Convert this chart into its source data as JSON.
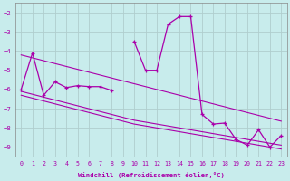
{
  "xlabel": "Windchill (Refroidissement éolien,°C)",
  "background_color": "#c8ecec",
  "grid_color": "#b0cece",
  "line_color": "#aa00aa",
  "x": [
    0,
    1,
    2,
    3,
    4,
    5,
    6,
    7,
    8,
    9,
    10,
    11,
    12,
    13,
    14,
    15,
    16,
    17,
    18,
    19,
    20,
    21,
    22,
    23
  ],
  "y_main": [
    -6.0,
    -4.1,
    -6.3,
    -5.6,
    -5.9,
    -5.8,
    -5.85,
    -5.85,
    -6.05,
    null,
    -3.5,
    -5.0,
    -5.0,
    -2.6,
    -2.2,
    -2.2,
    -7.3,
    -7.8,
    -7.75,
    -8.6,
    -8.9,
    -8.1,
    -9.0,
    -8.4
  ],
  "y_upper": [
    -4.2,
    -4.35,
    -4.5,
    -4.65,
    -4.8,
    -4.95,
    -5.1,
    -5.25,
    -5.4,
    -5.55,
    -5.7,
    -5.85,
    -6.0,
    -6.15,
    -6.3,
    -6.45,
    -6.6,
    -6.75,
    -6.9,
    -7.05,
    -7.2,
    -7.35,
    -7.5,
    -7.65
  ],
  "y_band1": [
    -6.1,
    -6.25,
    -6.4,
    -6.55,
    -6.7,
    -6.85,
    -7.0,
    -7.15,
    -7.3,
    -7.45,
    -7.6,
    -7.7,
    -7.8,
    -7.9,
    -8.0,
    -8.1,
    -8.2,
    -8.3,
    -8.4,
    -8.5,
    -8.6,
    -8.7,
    -8.8,
    -8.9
  ],
  "y_band2": [
    -6.3,
    -6.45,
    -6.6,
    -6.75,
    -6.9,
    -7.05,
    -7.2,
    -7.35,
    -7.5,
    -7.65,
    -7.8,
    -7.9,
    -8.0,
    -8.1,
    -8.2,
    -8.3,
    -8.4,
    -8.5,
    -8.6,
    -8.7,
    -8.8,
    -8.9,
    -9.0,
    -9.1
  ],
  "ylim": [
    -9.5,
    -1.5
  ],
  "yticks": [
    -9,
    -8,
    -7,
    -6,
    -5,
    -4,
    -3,
    -2
  ],
  "xlim": [
    -0.5,
    23.5
  ],
  "xticks": [
    0,
    1,
    2,
    3,
    4,
    5,
    6,
    7,
    8,
    9,
    10,
    11,
    12,
    13,
    14,
    15,
    16,
    17,
    18,
    19,
    20,
    21,
    22,
    23
  ]
}
